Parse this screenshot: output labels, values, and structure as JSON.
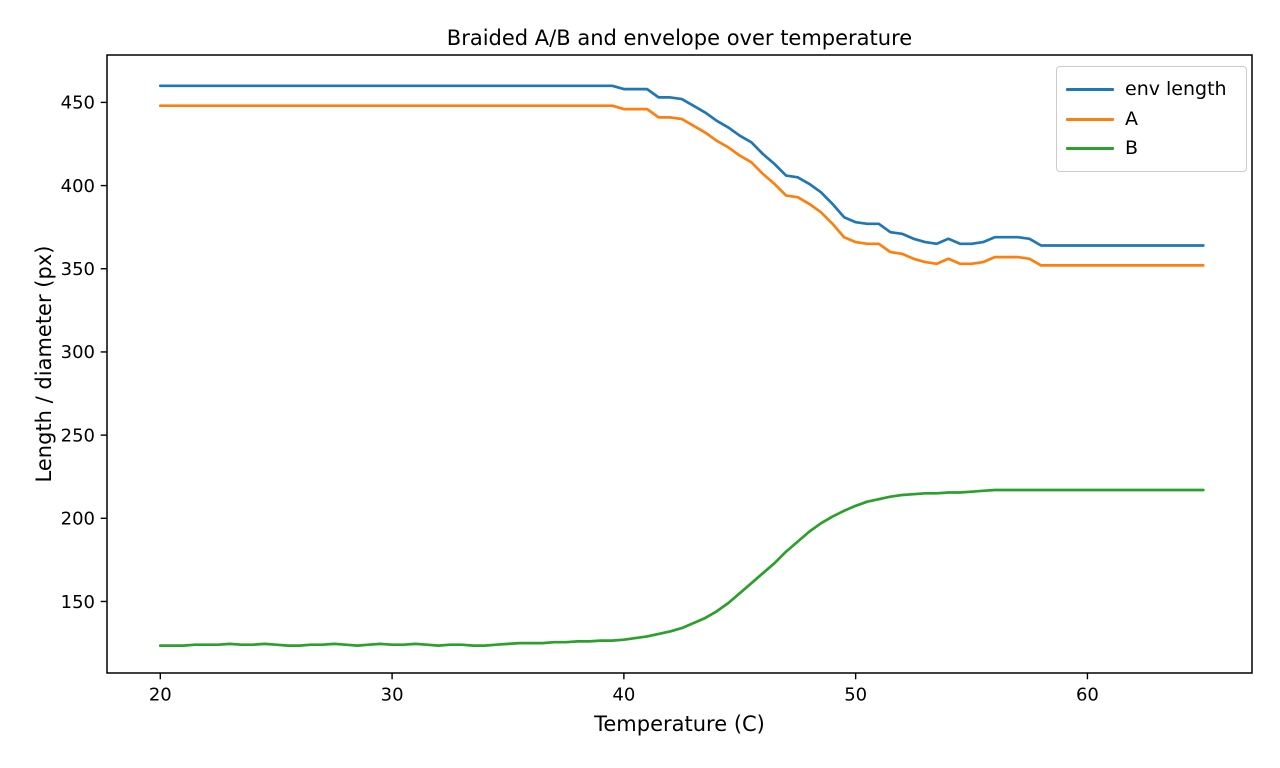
{
  "chart_data": {
    "type": "line",
    "title": "Braided A/B and envelope over temperature",
    "xlabel": "Temperature (C)",
    "ylabel": "Length / diameter (px)",
    "xlim": [
      17.7,
      67.1
    ],
    "ylim": [
      107,
      478.5
    ],
    "xticks": [
      20,
      30,
      40,
      50,
      60
    ],
    "yticks": [
      150,
      200,
      250,
      300,
      350,
      400,
      450
    ],
    "grid": false,
    "legend_position": "upper right",
    "x": [
      20,
      20.5,
      21,
      21.5,
      22,
      22.5,
      23,
      23.5,
      24,
      24.5,
      25,
      25.5,
      26,
      26.5,
      27,
      27.5,
      28,
      28.5,
      29,
      29.5,
      30,
      30.5,
      31,
      31.5,
      32,
      32.5,
      33,
      33.5,
      34,
      34.5,
      35,
      35.5,
      36,
      36.5,
      37,
      37.5,
      38,
      38.5,
      39,
      39.5,
      40,
      40.5,
      41,
      41.5,
      42,
      42.5,
      43,
      43.5,
      44,
      44.5,
      45,
      45.5,
      46,
      46.5,
      47,
      47.5,
      48,
      48.5,
      49,
      49.5,
      50,
      50.5,
      51,
      51.5,
      52,
      52.5,
      53,
      53.5,
      54,
      54.5,
      55,
      55.5,
      56,
      56.5,
      57,
      57.5,
      58,
      58.5,
      59,
      59.5,
      60,
      60.5,
      61,
      61.5,
      62,
      62.5,
      63,
      63.5,
      64,
      64.5,
      65
    ],
    "series": [
      {
        "name": "env length",
        "color": "#1f77b4",
        "values": [
          460,
          460,
          460,
          460,
          460,
          460,
          460,
          460,
          460,
          460,
          460,
          460,
          460,
          460,
          460,
          460,
          460,
          460,
          460,
          460,
          460,
          460,
          460,
          460,
          460,
          460,
          460,
          460,
          460,
          460,
          460,
          460,
          460,
          460,
          460,
          460,
          460,
          460,
          460,
          460,
          458,
          458,
          458,
          453,
          453,
          452,
          448,
          444,
          439,
          435,
          430,
          426,
          419,
          413,
          406,
          405,
          401,
          396,
          389,
          381,
          378,
          377,
          377,
          372,
          371,
          368,
          366,
          365,
          368,
          365,
          365,
          366,
          369,
          369,
          369,
          368,
          364,
          364,
          364,
          364,
          364,
          364,
          364,
          364,
          364,
          364,
          364,
          364,
          364,
          364,
          364
        ]
      },
      {
        "name": "A",
        "color": "#ff7f0e",
        "values": [
          448,
          448,
          448,
          448,
          448,
          448,
          448,
          448,
          448,
          448,
          448,
          448,
          448,
          448,
          448,
          448,
          448,
          448,
          448,
          448,
          448,
          448,
          448,
          448,
          448,
          448,
          448,
          448,
          448,
          448,
          448,
          448,
          448,
          448,
          448,
          448,
          448,
          448,
          448,
          448,
          446,
          446,
          446,
          441,
          441,
          440,
          436,
          432,
          427,
          423,
          418,
          414,
          407,
          401,
          394,
          393,
          389,
          384,
          377,
          369,
          366,
          365,
          365,
          360,
          359,
          356,
          354,
          353,
          356,
          353,
          353,
          354,
          357,
          357,
          357,
          356,
          352,
          352,
          352,
          352,
          352,
          352,
          352,
          352,
          352,
          352,
          352,
          352,
          352,
          352,
          352
        ]
      },
      {
        "name": "B",
        "color": "#2ca02c",
        "values": [
          123.5,
          123.5,
          123.5,
          124,
          124,
          124,
          124.5,
          124,
          124,
          124.5,
          124,
          123.5,
          123.5,
          124,
          124,
          124.5,
          124,
          123.5,
          124,
          124.5,
          124,
          124,
          124.5,
          124,
          123.5,
          124,
          124,
          123.5,
          123.5,
          124,
          124.5,
          125,
          125,
          125,
          125.5,
          125.5,
          126,
          126,
          126.5,
          126.5,
          127,
          128,
          129,
          130.5,
          132,
          134,
          137,
          140,
          144,
          149,
          155,
          161,
          167,
          173,
          180,
          186,
          192,
          197,
          201,
          204.5,
          207.5,
          210,
          211.5,
          213,
          214,
          214.5,
          215,
          215,
          215.5,
          215.5,
          216,
          216.5,
          217,
          217,
          217,
          217,
          217,
          217,
          217,
          217,
          217,
          217,
          217,
          217,
          217,
          217,
          217,
          217,
          217,
          217,
          217
        ]
      }
    ]
  }
}
